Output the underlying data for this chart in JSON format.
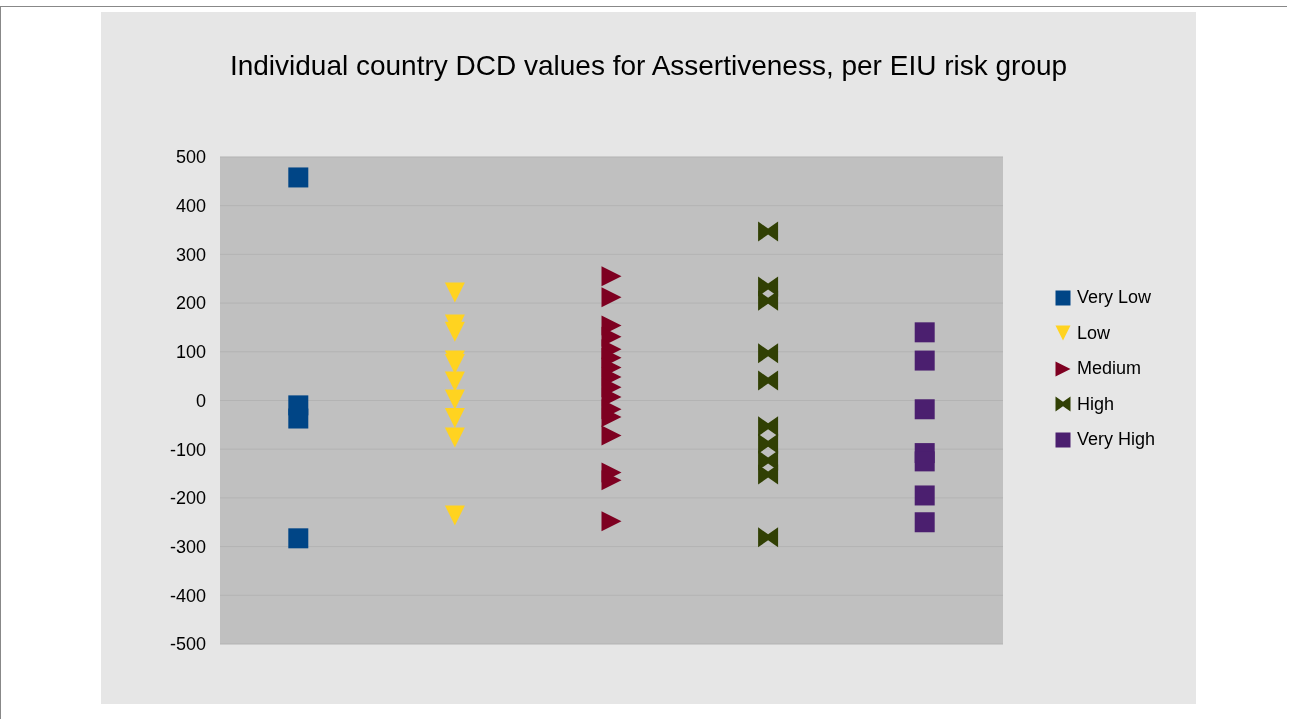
{
  "chart_data": {
    "type": "scatter",
    "title": "Individual country DCD values for Assertiveness, per EIU risk group",
    "categories": [
      null,
      null,
      null,
      null,
      null
    ],
    "ylim": [
      -500,
      500
    ],
    "yticks": [
      -500,
      -400,
      -300,
      -200,
      -100,
      0,
      100,
      200,
      300,
      400,
      500
    ],
    "grid": "y",
    "legend": "right",
    "tick_labels": "y",
    "series": [
      {
        "name": "Very Low",
        "color": "#004586",
        "marker": "square",
        "values": [
          458,
          null,
          null,
          null,
          null
        ]
      },
      {
        "color": "#004586",
        "marker": "square",
        "values": [
          -10,
          null,
          null,
          null,
          null
        ]
      },
      {
        "color": "#004586",
        "marker": "square",
        "values": [
          -37,
          null,
          null,
          null,
          null
        ]
      },
      {
        "color": "#004586",
        "marker": "square",
        "values": [
          -283,
          null,
          null,
          null,
          null
        ]
      },
      {
        "name": "Low",
        "color": "#ffd320",
        "marker": "triangle-down",
        "values": [
          null,
          222,
          null,
          null,
          null
        ]
      },
      {
        "color": "#ffd320",
        "marker": "triangle-down",
        "values": [
          null,
          156,
          null,
          null,
          null
        ]
      },
      {
        "color": "#ffd320",
        "marker": "triangle-down",
        "values": [
          null,
          141,
          null,
          null,
          null
        ]
      },
      {
        "color": "#ffd320",
        "marker": "triangle-down",
        "values": [
          null,
          82,
          null,
          null,
          null
        ]
      },
      {
        "color": "#ffd320",
        "marker": "triangle-down",
        "values": [
          null,
          75,
          null,
          null,
          null
        ]
      },
      {
        "color": "#ffd320",
        "marker": "triangle-down",
        "values": [
          null,
          39,
          null,
          null,
          null
        ]
      },
      {
        "color": "#ffd320",
        "marker": "triangle-down",
        "values": [
          null,
          2,
          null,
          null,
          null
        ]
      },
      {
        "color": "#ffd320",
        "marker": "triangle-down",
        "values": [
          null,
          -36,
          null,
          null,
          null
        ]
      },
      {
        "color": "#ffd320",
        "marker": "triangle-down",
        "values": [
          null,
          -76,
          null,
          null,
          null
        ]
      },
      {
        "color": "#ffd320",
        "marker": "triangle-down",
        "values": [
          null,
          -236,
          null,
          null,
          null
        ]
      },
      {
        "name": "Medium",
        "color": "#7e0021",
        "marker": "triangle-right",
        "values": [
          null,
          null,
          255,
          null,
          null
        ]
      },
      {
        "color": "#7e0021",
        "marker": "triangle-right",
        "values": [
          null,
          null,
          212,
          null,
          null
        ]
      },
      {
        "color": "#7e0021",
        "marker": "triangle-right",
        "values": [
          null,
          null,
          154,
          null,
          null
        ]
      },
      {
        "color": "#7e0021",
        "marker": "triangle-right",
        "values": [
          null,
          null,
          131,
          null,
          null
        ]
      },
      {
        "color": "#7e0021",
        "marker": "triangle-right",
        "values": [
          null,
          null,
          105,
          null,
          null
        ]
      },
      {
        "color": "#7e0021",
        "marker": "triangle-right",
        "values": [
          null,
          null,
          88,
          null,
          null
        ]
      },
      {
        "color": "#7e0021",
        "marker": "triangle-right",
        "values": [
          null,
          null,
          68,
          null,
          null
        ]
      },
      {
        "color": "#7e0021",
        "marker": "triangle-right",
        "values": [
          null,
          null,
          48,
          null,
          null
        ]
      },
      {
        "color": "#7e0021",
        "marker": "triangle-right",
        "values": [
          null,
          null,
          27,
          null,
          null
        ]
      },
      {
        "color": "#7e0021",
        "marker": "triangle-right",
        "values": [
          null,
          null,
          7,
          null,
          null
        ]
      },
      {
        "color": "#7e0021",
        "marker": "triangle-right",
        "values": [
          null,
          null,
          -18,
          null,
          null
        ]
      },
      {
        "color": "#7e0021",
        "marker": "triangle-right",
        "values": [
          null,
          null,
          -34,
          null,
          null
        ]
      },
      {
        "color": "#7e0021",
        "marker": "triangle-right",
        "values": [
          null,
          null,
          -72,
          null,
          null
        ]
      },
      {
        "color": "#7e0021",
        "marker": "triangle-right",
        "values": [
          null,
          null,
          -148,
          null,
          null
        ]
      },
      {
        "color": "#7e0021",
        "marker": "triangle-right",
        "values": [
          null,
          null,
          -164,
          null,
          null
        ]
      },
      {
        "color": "#7e0021",
        "marker": "triangle-right",
        "values": [
          null,
          null,
          -248,
          null,
          null
        ]
      },
      {
        "name": "High",
        "color": "#314004",
        "values": [
          null,
          null,
          null,
          347,
          null
        ]
      },
      {
        "color": "#314004",
        "values": [
          null,
          null,
          null,
          234,
          null
        ]
      },
      {
        "color": "#314004",
        "values": [
          null,
          null,
          null,
          205,
          null
        ]
      },
      {
        "color": "#314004",
        "values": [
          null,
          null,
          null,
          97,
          null
        ]
      },
      {
        "color": "#314004",
        "values": [
          null,
          null,
          null,
          41,
          null
        ]
      },
      {
        "color": "#314004",
        "values": [
          null,
          null,
          null,
          -53,
          null
        ]
      },
      {
        "color": "#314004",
        "values": [
          null,
          null,
          null,
          -89,
          null
        ]
      },
      {
        "color": "#314004",
        "values": [
          null,
          null,
          null,
          -123,
          null
        ]
      },
      {
        "color": "#314004",
        "values": [
          null,
          null,
          null,
          -152,
          null
        ]
      },
      {
        "color": "#314004",
        "values": [
          null,
          null,
          null,
          -281,
          null
        ]
      },
      {
        "name": "Very High",
        "color": "#4b1f6f",
        "marker": "square",
        "values": [
          null,
          null,
          null,
          null,
          140
        ]
      },
      {
        "color": "#4b1f6f",
        "marker": "square",
        "values": [
          null,
          null,
          null,
          null,
          82
        ]
      },
      {
        "color": "#4b1f6f",
        "marker": "square",
        "values": [
          null,
          null,
          null,
          null,
          -18
        ]
      },
      {
        "color": "#4b1f6f",
        "marker": "square",
        "values": [
          null,
          null,
          null,
          null,
          -108
        ]
      },
      {
        "color": "#4b1f6f",
        "marker": "square",
        "values": [
          null,
          null,
          null,
          null,
          -125
        ]
      },
      {
        "color": "#4b1f6f",
        "marker": "square",
        "values": [
          null,
          null,
          null,
          null,
          -195
        ]
      },
      {
        "color": "#4b1f6f",
        "marker": "square",
        "values": [
          null,
          null,
          null,
          null,
          -250
        ]
      }
    ]
  }
}
